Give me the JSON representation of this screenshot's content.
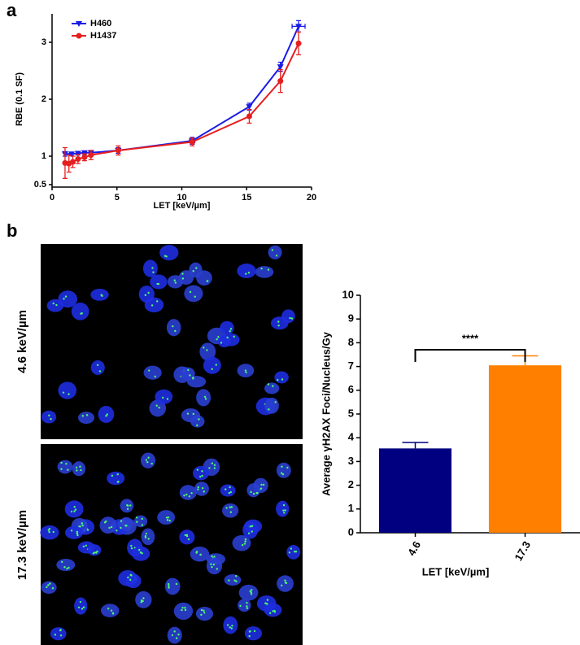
{
  "panel_labels": [
    "a",
    "b"
  ],
  "images": [
    {
      "label": "4.6 keV/µm"
    },
    {
      "label": "17.3 keV/µm"
    }
  ],
  "chart_data": [
    {
      "type": "line",
      "xlabel": "LET [keV/µm]",
      "ylabel": "RBE (0.1 SF)",
      "xlim": [
        0,
        20
      ],
      "xticks": [
        0,
        5,
        10,
        15,
        20
      ],
      "ylim": [
        0.5,
        3.5
      ],
      "yticks": [
        0.5,
        1,
        2,
        3
      ],
      "legend": "upper-left",
      "series": [
        {
          "name": "H460",
          "color": "#1a1ae6",
          "marker": "triangle-down",
          "x": [
            1,
            1.5,
            2,
            2.5,
            3,
            5.1,
            10.8,
            15.2,
            17.6,
            19
          ],
          "values": [
            1.04,
            1.04,
            1.05,
            1.06,
            1.06,
            1.1,
            1.27,
            1.87,
            2.57,
            3.28
          ],
          "errors": [
            0.04,
            0.03,
            0.03,
            0.03,
            0.04,
            0.05,
            0.06,
            0.06,
            0.08,
            0.1
          ],
          "xerrors": [
            0,
            0,
            0,
            0,
            0,
            0,
            0.2,
            0,
            0,
            0.5
          ]
        },
        {
          "name": "H1437",
          "color": "#e61e1e",
          "marker": "circle",
          "x": [
            1,
            1.3,
            1.6,
            2,
            2.5,
            3,
            5.1,
            10.8,
            15.2,
            17.6,
            19
          ],
          "values": [
            0.88,
            0.87,
            0.9,
            0.95,
            0.98,
            1.02,
            1.1,
            1.25,
            1.7,
            2.32,
            2.98
          ],
          "errors": [
            0.27,
            0.15,
            0.1,
            0.08,
            0.06,
            0.08,
            0.08,
            0.07,
            0.12,
            0.2,
            0.2
          ]
        }
      ]
    },
    {
      "type": "bar",
      "xlabel": "LET [keV/µm]",
      "ylabel": "Average γH2AX Foci/Nucleus/Gy",
      "categories": [
        "4.6",
        "17.3"
      ],
      "values": [
        3.55,
        7.05
      ],
      "errors": [
        0.25,
        0.4
      ],
      "colors": [
        "#000080",
        "#ff8000"
      ],
      "ylim": [
        0,
        10
      ],
      "yticks": [
        0,
        1,
        2,
        3,
        4,
        5,
        6,
        7,
        8,
        9,
        10
      ],
      "annotation": "****"
    }
  ]
}
